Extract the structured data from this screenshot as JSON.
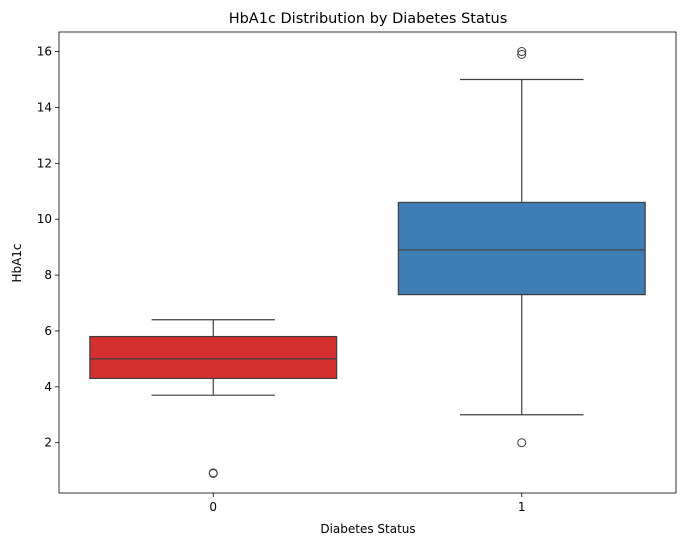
{
  "chart_data": {
    "type": "box",
    "title": "HbA1c Distribution by Diabetes Status",
    "xlabel": "Diabetes Status",
    "ylabel": "HbA1c",
    "categories": [
      "0",
      "1"
    ],
    "ylim": [
      0.2,
      16.7
    ],
    "yticks": [
      2,
      4,
      6,
      8,
      10,
      12,
      14,
      16
    ],
    "ytick_labels": [
      "2",
      "4",
      "6",
      "8",
      "10",
      "12",
      "14",
      "16"
    ],
    "grid": false,
    "boxes": [
      {
        "category": "0",
        "whisker_low": 3.7,
        "q1": 4.3,
        "median": 5.0,
        "q3": 5.8,
        "whisker_high": 6.4,
        "outliers": [
          0.9,
          0.92
        ],
        "color": "#d62f30"
      },
      {
        "category": "1",
        "whisker_low": 3.0,
        "q1": 7.3,
        "median": 8.9,
        "q3": 10.6,
        "whisker_high": 15.0,
        "outliers": [
          2.0,
          15.9,
          16.0
        ],
        "color": "#3f7db5"
      }
    ]
  }
}
